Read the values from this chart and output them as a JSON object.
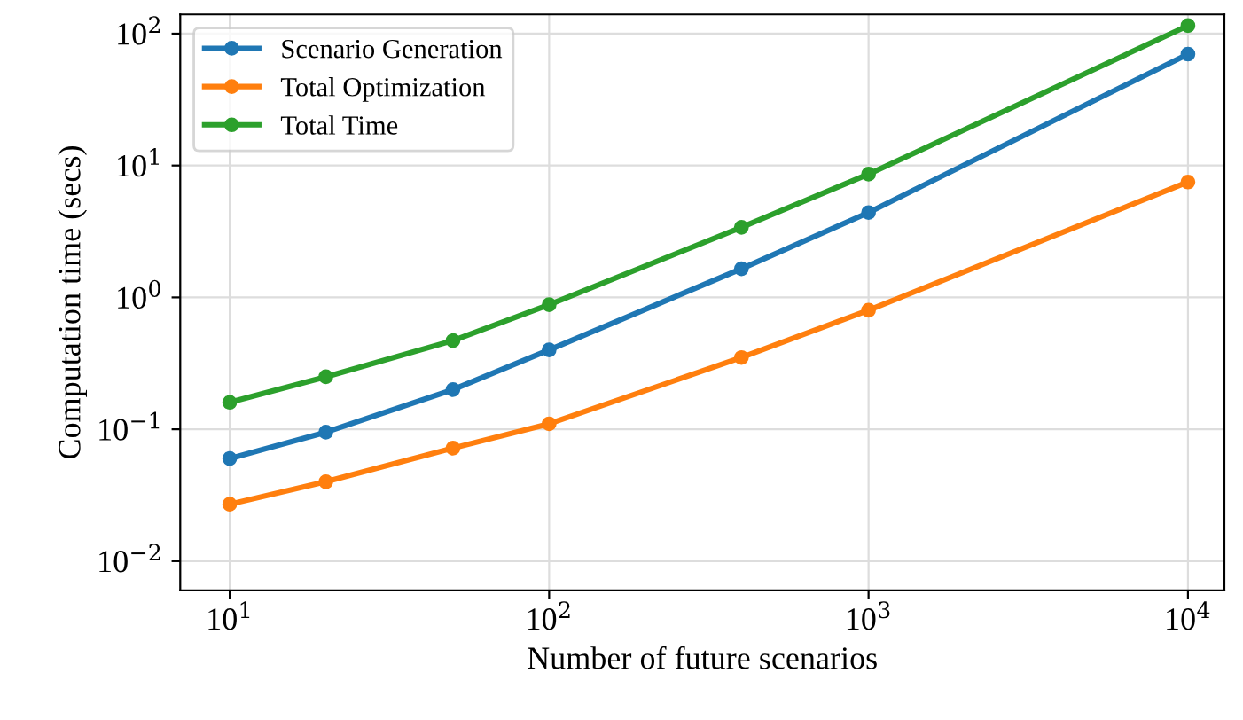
{
  "chart_data": {
    "type": "line",
    "xlabel": "Number of future scenarios",
    "ylabel": "Computation time (secs)",
    "x": [
      10,
      20,
      50,
      100,
      400,
      1000,
      10000
    ],
    "series": [
      {
        "name": "Scenario Generation",
        "color": "#1f77b4",
        "values": [
          0.06,
          0.095,
          0.2,
          0.4,
          1.65,
          4.4,
          70
        ]
      },
      {
        "name": "Total Optimization",
        "color": "#ff7f0e",
        "values": [
          0.027,
          0.04,
          0.072,
          0.11,
          0.35,
          0.8,
          7.5
        ]
      },
      {
        "name": "Total Time",
        "color": "#2ca02c",
        "values": [
          0.16,
          0.25,
          0.47,
          0.88,
          3.4,
          8.6,
          115
        ]
      }
    ],
    "log": "xy",
    "xlim": [
      7,
      13000
    ],
    "ylim": [
      0.006,
      140
    ],
    "xticks": [
      {
        "value": 10,
        "label": "10$^{1}$"
      },
      {
        "value": 100,
        "label": "10$^{2}$"
      },
      {
        "value": 1000,
        "label": "10$^{3}$"
      },
      {
        "value": 10000,
        "label": "10$^{4}$"
      }
    ],
    "yticks": [
      {
        "value": 0.01,
        "label": "10$^{−2}$"
      },
      {
        "value": 0.1,
        "label": "10$^{−1}$"
      },
      {
        "value": 1,
        "label": "10$^{0}$"
      },
      {
        "value": 10,
        "label": "10$^{1}$"
      },
      {
        "value": 100,
        "label": "10$^{2}$"
      }
    ],
    "grid": true,
    "legend": "top left",
    "marker": "circle",
    "line_style": "solid"
  }
}
